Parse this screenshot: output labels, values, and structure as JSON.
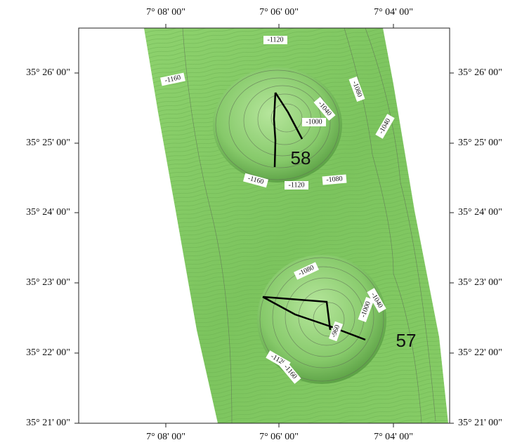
{
  "map": {
    "lon_ticks_top": [
      "7° 08' 00\"",
      "7° 06' 00\"",
      "7° 04' 00\""
    ],
    "lon_ticks_bottom": [
      "7° 08' 00\"",
      "7° 06' 00\"",
      "7° 04' 00\""
    ],
    "lat_ticks_left": [
      "35° 26' 00\"",
      "35° 25' 00\"",
      "35° 24' 00\"",
      "35° 23' 00\"",
      "35° 22' 00\"",
      "35° 21' 00\""
    ],
    "lat_ticks_right": [
      "35° 26' 00\"",
      "35° 25' 00\"",
      "35° 24' 00\"",
      "35° 23' 00\"",
      "35° 22' 00\"",
      "35° 21' 00\""
    ],
    "contour_labels": [
      "-1120",
      "-1160",
      "-1040",
      "-1000",
      "-1080",
      "-1040",
      "-1160",
      "-1120",
      "-1080",
      "-1080",
      "-1040",
      "-1000",
      "-960",
      "-1120",
      "-1160"
    ],
    "sites": [
      "58",
      "57"
    ]
  }
}
